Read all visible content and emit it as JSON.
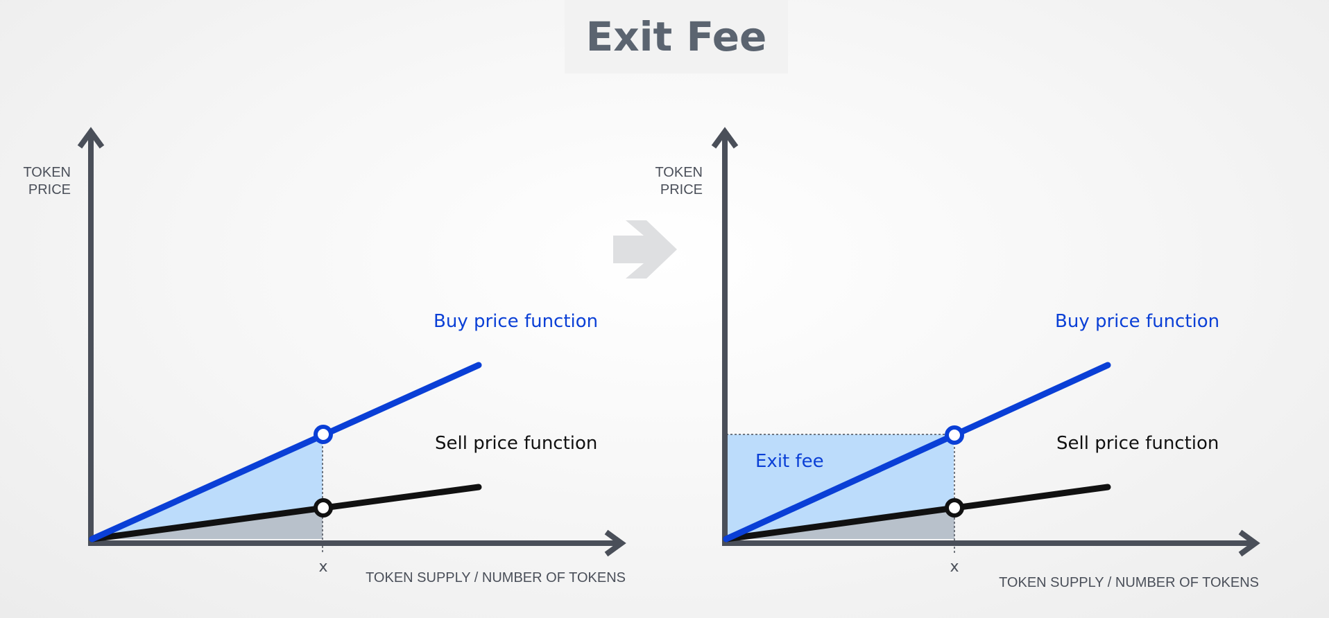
{
  "title": "Exit Fee",
  "arrow_icon": "right-arrow-icon",
  "colors": {
    "buy": "#0a3fd6",
    "sell": "#111111",
    "axis": "#4a4f59",
    "buy_area": "#bcdcfb",
    "sell_area": "#b8c1cb"
  },
  "panels": [
    {
      "y_axis_label_line1": "TOKEN",
      "y_axis_label_line2": "PRICE",
      "x_axis_label": "TOKEN SUPPLY / NUMBER OF TOKENS",
      "x_tick_label": "x",
      "buy_label": "Buy price function",
      "sell_label": "Sell price function"
    },
    {
      "y_axis_label_line1": "TOKEN",
      "y_axis_label_line2": "PRICE",
      "x_axis_label": "TOKEN SUPPLY / NUMBER OF TOKENS",
      "x_tick_label": "x",
      "buy_label": "Buy price function",
      "sell_label": "Sell price function",
      "fee_label": "Exit fee"
    }
  ]
}
